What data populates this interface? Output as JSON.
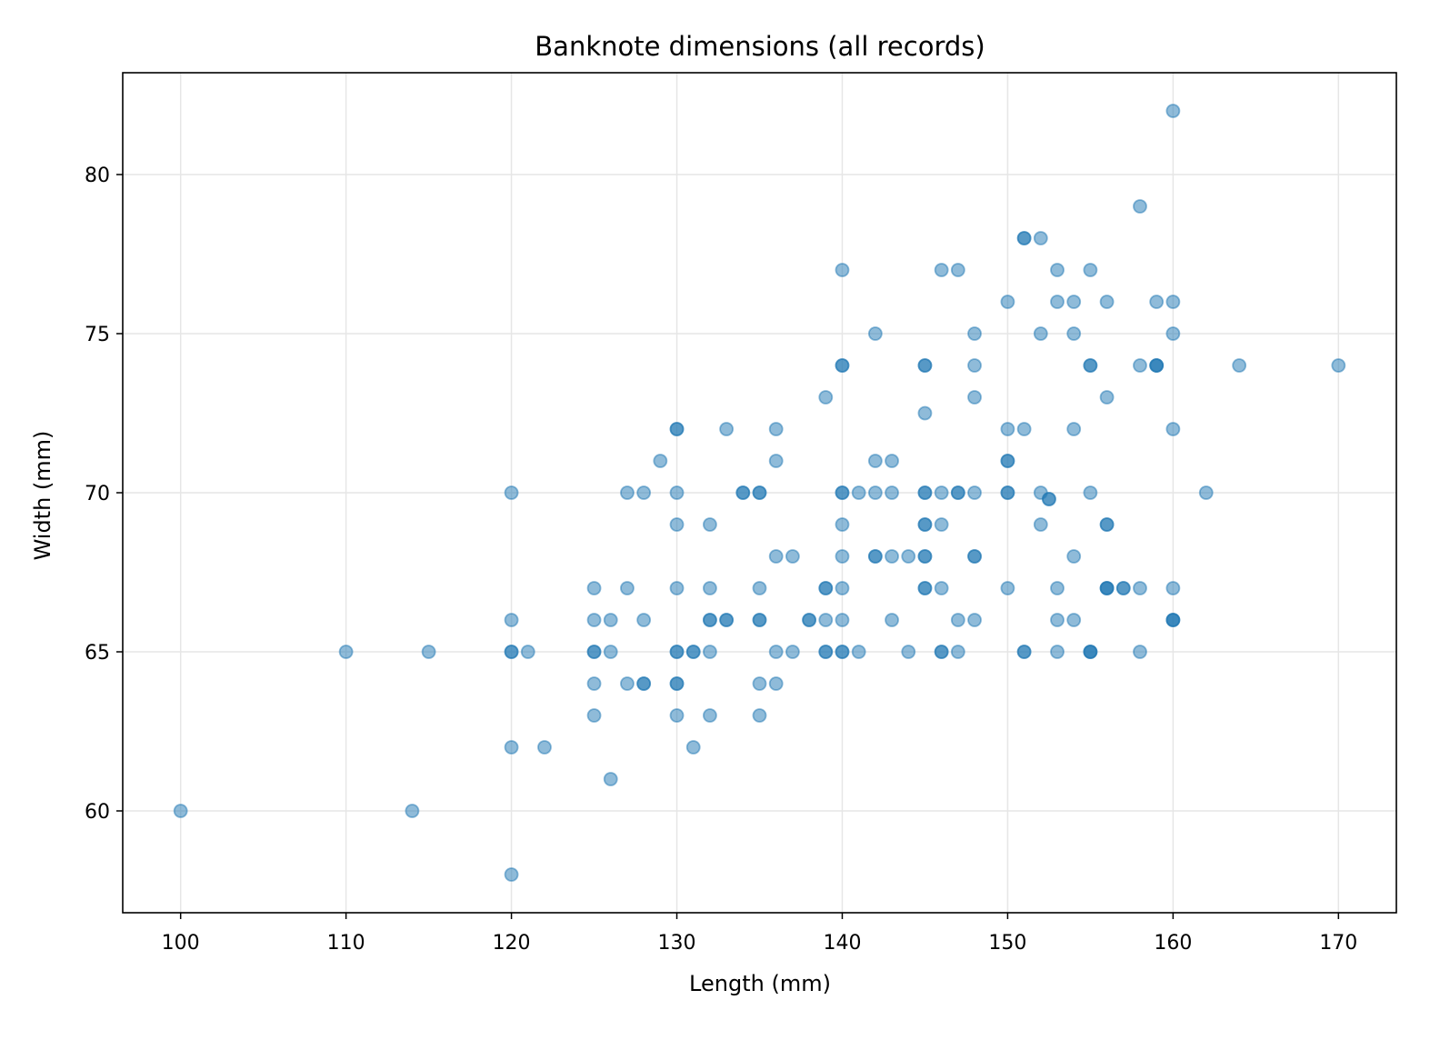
{
  "chart_data": {
    "type": "scatter",
    "title": "Banknote dimensions (all records)",
    "xlabel": "Length (mm)",
    "ylabel": "Width (mm)",
    "xlim": [
      96.5,
      173.5
    ],
    "ylim": [
      56.8,
      83.2
    ],
    "xticks": [
      100,
      110,
      120,
      130,
      140,
      150,
      160,
      170
    ],
    "yticks": [
      60,
      65,
      70,
      75,
      80
    ],
    "grid": true,
    "marker_color": "#1f77b4",
    "marker_alpha": 0.5,
    "points": [
      [
        100,
        60
      ],
      [
        110,
        65
      ],
      [
        114,
        60
      ],
      [
        115,
        65
      ],
      [
        120,
        70
      ],
      [
        120,
        66
      ],
      [
        120,
        65
      ],
      [
        120,
        65
      ],
      [
        120,
        62
      ],
      [
        120,
        58
      ],
      [
        121,
        65
      ],
      [
        122,
        62
      ],
      [
        125,
        67
      ],
      [
        125,
        66
      ],
      [
        125,
        65
      ],
      [
        125,
        65
      ],
      [
        125,
        64
      ],
      [
        125,
        63
      ],
      [
        126,
        66
      ],
      [
        126,
        65
      ],
      [
        126,
        61
      ],
      [
        127,
        70
      ],
      [
        127,
        67
      ],
      [
        127,
        64
      ],
      [
        128,
        70
      ],
      [
        128,
        66
      ],
      [
        128,
        64
      ],
      [
        128,
        64
      ],
      [
        129,
        71
      ],
      [
        130,
        72
      ],
      [
        130,
        72
      ],
      [
        130,
        70
      ],
      [
        130,
        69
      ],
      [
        130,
        67
      ],
      [
        130,
        65
      ],
      [
        130,
        65
      ],
      [
        130,
        64
      ],
      [
        130,
        64
      ],
      [
        130,
        63
      ],
      [
        131,
        65
      ],
      [
        131,
        65
      ],
      [
        131,
        62
      ],
      [
        132,
        69
      ],
      [
        132,
        67
      ],
      [
        132,
        66
      ],
      [
        132,
        66
      ],
      [
        132,
        65
      ],
      [
        132,
        63
      ],
      [
        133,
        72
      ],
      [
        133,
        66
      ],
      [
        133,
        66
      ],
      [
        134,
        70
      ],
      [
        134,
        70
      ],
      [
        135,
        70
      ],
      [
        135,
        70
      ],
      [
        135,
        67
      ],
      [
        135,
        66
      ],
      [
        135,
        66
      ],
      [
        135,
        64
      ],
      [
        135,
        63
      ],
      [
        136,
        72
      ],
      [
        136,
        71
      ],
      [
        136,
        68
      ],
      [
        136,
        65
      ],
      [
        136,
        64
      ],
      [
        137,
        68
      ],
      [
        137,
        65
      ],
      [
        138,
        66
      ],
      [
        138,
        66
      ],
      [
        139,
        73
      ],
      [
        139,
        67
      ],
      [
        139,
        67
      ],
      [
        139,
        66
      ],
      [
        139,
        65
      ],
      [
        139,
        65
      ],
      [
        140,
        77
      ],
      [
        140,
        74
      ],
      [
        140,
        74
      ],
      [
        140,
        70
      ],
      [
        140,
        70
      ],
      [
        140,
        69
      ],
      [
        140,
        68
      ],
      [
        140,
        67
      ],
      [
        140,
        66
      ],
      [
        140,
        65
      ],
      [
        140,
        65
      ],
      [
        141,
        70
      ],
      [
        141,
        65
      ],
      [
        142,
        75
      ],
      [
        142,
        71
      ],
      [
        142,
        70
      ],
      [
        142,
        68
      ],
      [
        142,
        68
      ],
      [
        143,
        71
      ],
      [
        143,
        70
      ],
      [
        143,
        68
      ],
      [
        143,
        66
      ],
      [
        144,
        68
      ],
      [
        144,
        65
      ],
      [
        145,
        74
      ],
      [
        145,
        74
      ],
      [
        145,
        72.5
      ],
      [
        145,
        70
      ],
      [
        145,
        70
      ],
      [
        145,
        69
      ],
      [
        145,
        69
      ],
      [
        145,
        68
      ],
      [
        145,
        68
      ],
      [
        145,
        67
      ],
      [
        145,
        67
      ],
      [
        146,
        77
      ],
      [
        146,
        70
      ],
      [
        146,
        69
      ],
      [
        146,
        67
      ],
      [
        146,
        65
      ],
      [
        146,
        65
      ],
      [
        147,
        77
      ],
      [
        147,
        70
      ],
      [
        147,
        70
      ],
      [
        147,
        66
      ],
      [
        147,
        65
      ],
      [
        148,
        75
      ],
      [
        148,
        74
      ],
      [
        148,
        73
      ],
      [
        148,
        70
      ],
      [
        148,
        68
      ],
      [
        148,
        68
      ],
      [
        148,
        66
      ],
      [
        150,
        76
      ],
      [
        150,
        72
      ],
      [
        150,
        71
      ],
      [
        150,
        71
      ],
      [
        150,
        70
      ],
      [
        150,
        70
      ],
      [
        150,
        67
      ],
      [
        151,
        78
      ],
      [
        151,
        78
      ],
      [
        151,
        72
      ],
      [
        151,
        65
      ],
      [
        151,
        65
      ],
      [
        152,
        78
      ],
      [
        152,
        75
      ],
      [
        152,
        70
      ],
      [
        152,
        69
      ],
      [
        152.5,
        69.8
      ],
      [
        152.5,
        69.8
      ],
      [
        153,
        77
      ],
      [
        153,
        76
      ],
      [
        153,
        67
      ],
      [
        153,
        66
      ],
      [
        153,
        65
      ],
      [
        154,
        76
      ],
      [
        154,
        75
      ],
      [
        154,
        72
      ],
      [
        154,
        68
      ],
      [
        154,
        66
      ],
      [
        155,
        77
      ],
      [
        155,
        74
      ],
      [
        155,
        74
      ],
      [
        155,
        70
      ],
      [
        155,
        65
      ],
      [
        155,
        65
      ],
      [
        155,
        65
      ],
      [
        156,
        76
      ],
      [
        156,
        73
      ],
      [
        156,
        69
      ],
      [
        156,
        69
      ],
      [
        156,
        67
      ],
      [
        156,
        67
      ],
      [
        156,
        67
      ],
      [
        157,
        67
      ],
      [
        157,
        67
      ],
      [
        158,
        79
      ],
      [
        158,
        74
      ],
      [
        158,
        67
      ],
      [
        158,
        65
      ],
      [
        159,
        76
      ],
      [
        159,
        74
      ],
      [
        159,
        74
      ],
      [
        159,
        74
      ],
      [
        160,
        82
      ],
      [
        160,
        76
      ],
      [
        160,
        75
      ],
      [
        160,
        72
      ],
      [
        160,
        67
      ],
      [
        160,
        66
      ],
      [
        160,
        66
      ],
      [
        160,
        66
      ],
      [
        162,
        70
      ],
      [
        164,
        74
      ],
      [
        170,
        74
      ]
    ]
  }
}
